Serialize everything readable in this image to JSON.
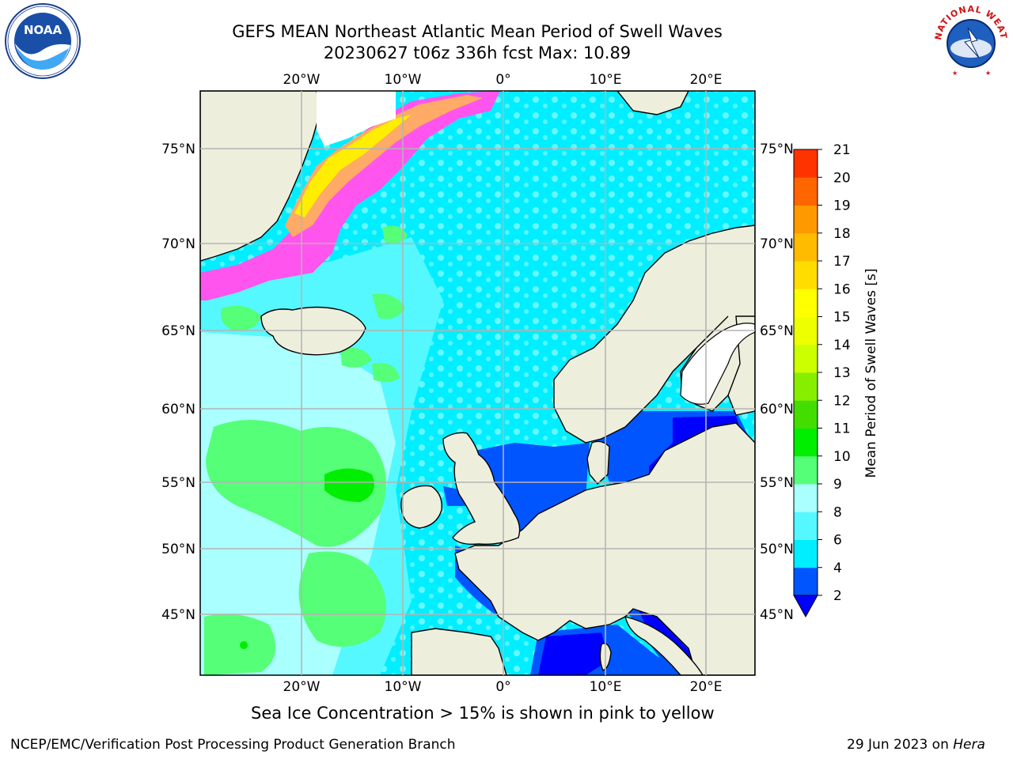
{
  "title": {
    "line1": "GEFS MEAN Northeast Atlantic Mean Period of Swell Waves",
    "line2": "20230627 t06z 336h fcst   Max: 10.89"
  },
  "map": {
    "projection": "Lambert conformal",
    "extent": {
      "lon_min": -30,
      "lon_max": 25,
      "lat_min": 41,
      "lat_max": 78
    },
    "longitude_labels": [
      "20°W",
      "10°W",
      "0°",
      "10°E",
      "20°E"
    ],
    "latitude_labels": [
      "75°N",
      "70°N",
      "65°N",
      "60°N",
      "55°N",
      "50°N",
      "45°N"
    ],
    "land_color": "#eeeedd",
    "grid_color": "#b4b4b4"
  },
  "colorbar": {
    "label": "Mean Period of Swell Waves [s]",
    "ticks": [
      "2",
      "4",
      "6",
      "8",
      "9",
      "10",
      "11",
      "12",
      "13",
      "14",
      "15",
      "16",
      "17",
      "18",
      "19",
      "20",
      "21"
    ],
    "colors": [
      "#0055ff",
      "#00eeff",
      "#55f8ff",
      "#aaffff",
      "#55ff77",
      "#00ee00",
      "#44dd00",
      "#88ee00",
      "#ccff00",
      "#eeff00",
      "#ffff00",
      "#ffdd00",
      "#ffbb00",
      "#ff9900",
      "#ff6600",
      "#ff3300"
    ],
    "under_color": "#0000ff",
    "extend": "min"
  },
  "sea_ice_note": "Sea Ice Concentration > 15% is shown in pink to yellow",
  "footer": {
    "left": "NCEP/EMC/Verification Post Processing Product Generation Branch",
    "date": "29 Jun 2023 on ",
    "machine": "Hera"
  },
  "logos": {
    "left": "noaa-logo",
    "right": "national-weather-service-logo",
    "right_text": "NATIONAL WEATHER SERVICE"
  }
}
